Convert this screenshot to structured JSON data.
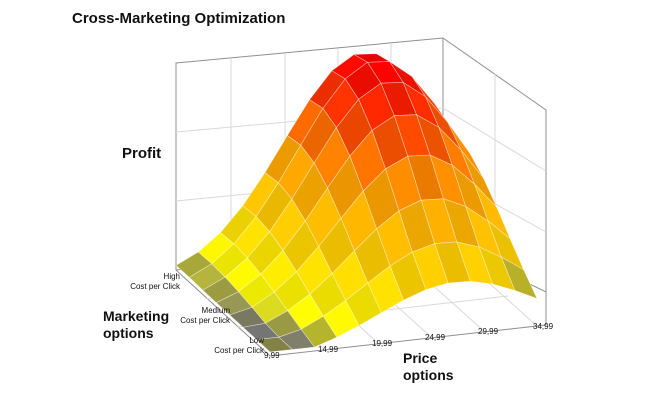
{
  "chart_data": {
    "type": "surface3d",
    "title": "Cross-Marketing Optimization",
    "zlabel": "Profit",
    "ylabel_lines": [
      "Marketing",
      "options"
    ],
    "xlabel_lines": [
      "Price",
      "options"
    ],
    "x_ticks": [
      "9,99",
      "14,99",
      "19,99",
      "24,99",
      "29,99",
      "34,99"
    ],
    "y_tick_lines": [
      [
        "Low",
        "Cost per Click"
      ],
      [
        "Medium",
        "Cost per Click"
      ],
      [
        "High",
        "Cost per Click"
      ]
    ],
    "grid": true,
    "colors": {
      "low": "#4040a0",
      "mid_low": "#ffff00",
      "mid": "#ffa000",
      "high": "#ff0000",
      "edge_dark": "#9a9a3a"
    }
  }
}
